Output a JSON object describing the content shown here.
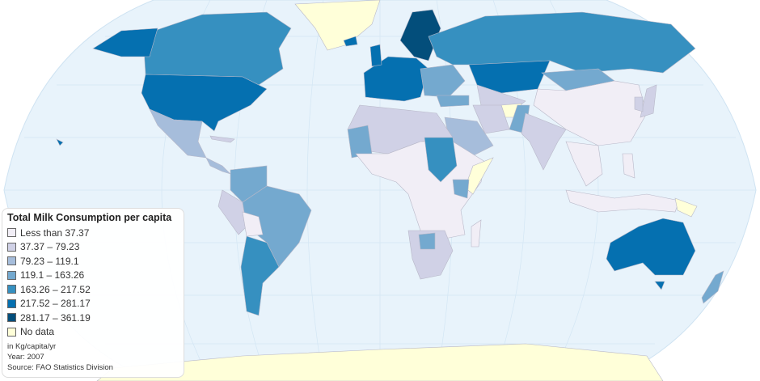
{
  "legend": {
    "title": "Total Milk Consumption per capita",
    "items": [
      {
        "label": "Less than 37.37",
        "color": "#f1eef6"
      },
      {
        "label": "37.37 – 79.23",
        "color": "#d0d1e6"
      },
      {
        "label": "79.23 – 119.1",
        "color": "#a6bddb"
      },
      {
        "label": "119.1 – 163.26",
        "color": "#74a9cf"
      },
      {
        "label": "163.26 – 217.52",
        "color": "#3690c0"
      },
      {
        "label": "217.52 – 281.17",
        "color": "#0570b0"
      },
      {
        "label": "281.17 – 361.19",
        "color": "#034e7b"
      },
      {
        "label": "No data",
        "color": "#ffffd9"
      }
    ],
    "unit": "in Kg/capita/yr",
    "year": "Year: 2007",
    "source": "Source: FAO Statistics Division"
  },
  "colors": {
    "ocean": "#e8f3fb",
    "graticule": "#cfe3f2"
  }
}
